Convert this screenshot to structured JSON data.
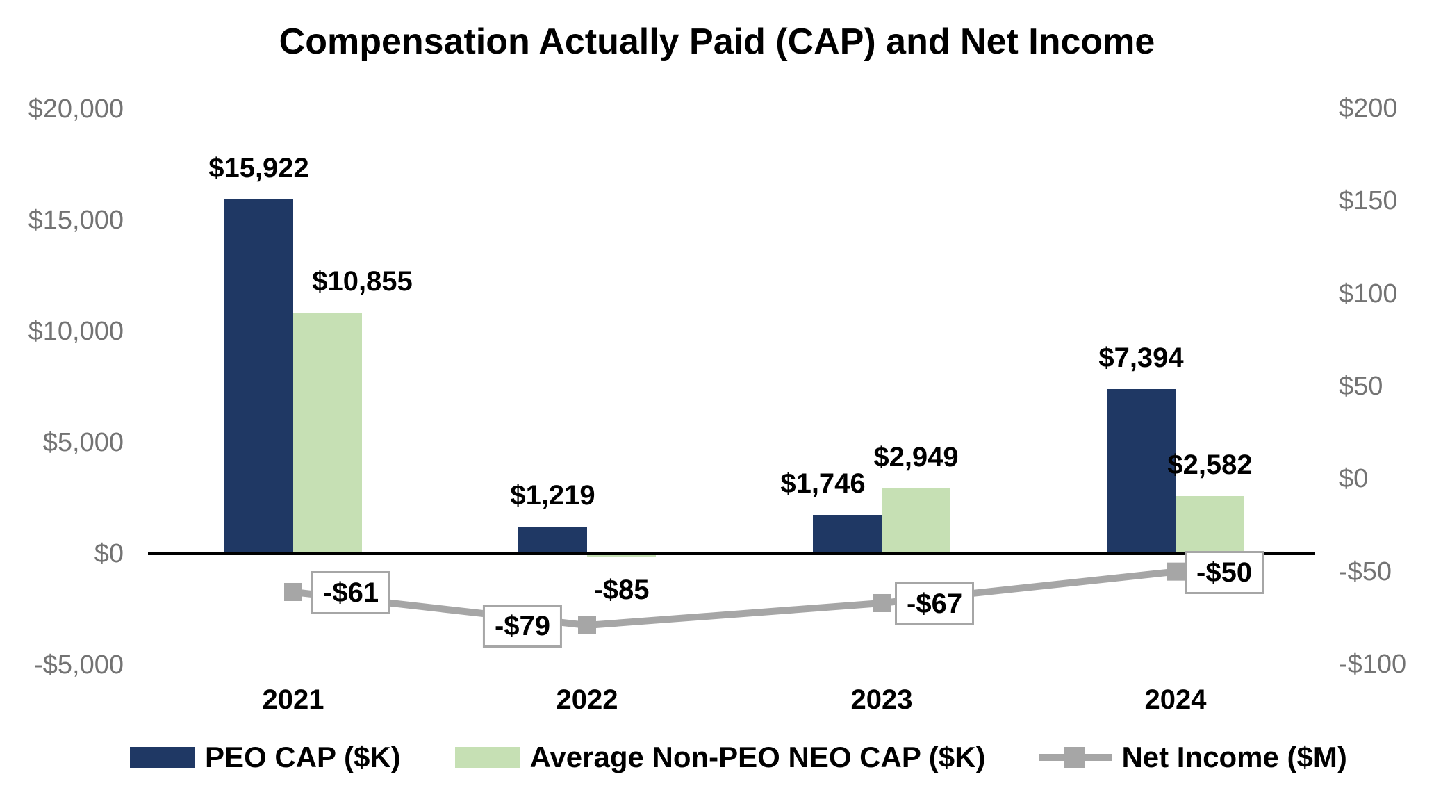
{
  "chart_data": {
    "type": "combo-bar-line",
    "title": "Compensation Actually Paid (CAP) and Net Income",
    "categories": [
      "2021",
      "2022",
      "2023",
      "2024"
    ],
    "series": [
      {
        "name": "PEO CAP ($K)",
        "type": "bar",
        "axis": "left",
        "color": "#1F3864",
        "values": [
          15922,
          1219,
          1746,
          7394
        ],
        "labels": [
          "$15,922",
          "$1,219",
          "$1,746",
          "$7,394"
        ]
      },
      {
        "name": "Average Non-PEO NEO CAP ($K)",
        "type": "bar",
        "axis": "left",
        "color": "#C6E0B4",
        "values": [
          10855,
          -85,
          2949,
          2582
        ],
        "labels": [
          "$10,855",
          "-$85",
          "$2,949",
          "$2,582"
        ]
      },
      {
        "name": "Net Income ($M)",
        "type": "line",
        "axis": "right",
        "color": "#A6A6A6",
        "values": [
          -61,
          -79,
          -67,
          -50
        ],
        "labels": [
          "-$61",
          "-$79",
          "-$67",
          "-$50"
        ]
      }
    ],
    "left_axis": {
      "ticks": [
        "$20,000",
        "$15,000",
        "$10,000",
        "$5,000",
        "$0",
        "-$5,000"
      ],
      "tick_values": [
        20000,
        15000,
        10000,
        5000,
        0,
        -5000
      ],
      "range": [
        -5000,
        20000
      ]
    },
    "right_axis": {
      "ticks": [
        "$200",
        "$150",
        "$100",
        "$50",
        "$0",
        "-$50",
        "-$100"
      ],
      "tick_values": [
        200,
        150,
        100,
        50,
        0,
        -50,
        -100
      ],
      "range": [
        -100,
        200
      ]
    },
    "grid": false,
    "legend_position": "bottom"
  }
}
